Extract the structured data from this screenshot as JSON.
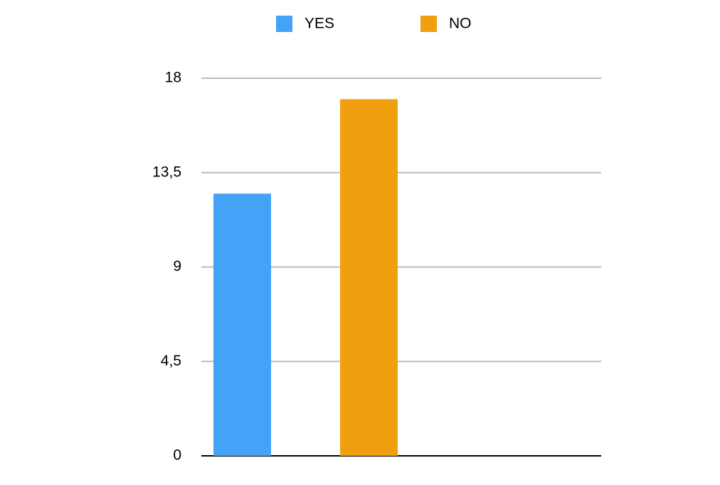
{
  "chart_data": {
    "type": "bar",
    "categories": [
      null
    ],
    "series": [
      {
        "name": "YES",
        "color": "#44a3f7",
        "values": [
          12.5
        ]
      },
      {
        "name": "NO",
        "color": "#f0a00e",
        "values": [
          17
        ]
      }
    ],
    "ylim": [
      0,
      18
    ],
    "yticks": [
      0,
      {
        "value": 4.5,
        "label": "4,5"
      },
      9,
      {
        "value": 13.5,
        "label": "13,5"
      },
      18
    ],
    "grid": true,
    "legend": "top"
  }
}
